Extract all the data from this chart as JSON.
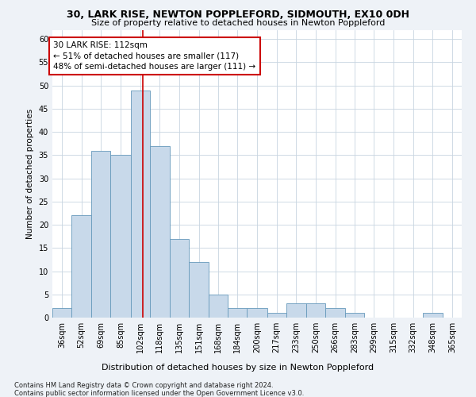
{
  "title": "30, LARK RISE, NEWTON POPPLEFORD, SIDMOUTH, EX10 0DH",
  "subtitle": "Size of property relative to detached houses in Newton Poppleford",
  "xlabel": "Distribution of detached houses by size in Newton Poppleford",
  "ylabel": "Number of detached properties",
  "bar_color": "#c8d9ea",
  "bar_edge_color": "#6699bb",
  "vline_x": 112,
  "vline_color": "#cc0000",
  "categories": [
    "36sqm",
    "52sqm",
    "69sqm",
    "85sqm",
    "102sqm",
    "118sqm",
    "135sqm",
    "151sqm",
    "168sqm",
    "184sqm",
    "200sqm",
    "217sqm",
    "233sqm",
    "250sqm",
    "266sqm",
    "283sqm",
    "299sqm",
    "315sqm",
    "332sqm",
    "348sqm",
    "365sqm"
  ],
  "bin_edges": [
    36,
    52,
    69,
    85,
    102,
    118,
    135,
    151,
    168,
    184,
    200,
    217,
    233,
    250,
    266,
    283,
    299,
    315,
    332,
    348,
    365,
    381
  ],
  "values": [
    2,
    22,
    36,
    35,
    49,
    37,
    17,
    12,
    5,
    2,
    2,
    1,
    3,
    3,
    2,
    1,
    0,
    0,
    0,
    1,
    0
  ],
  "ylim": [
    0,
    62
  ],
  "yticks": [
    0,
    5,
    10,
    15,
    20,
    25,
    30,
    35,
    40,
    45,
    50,
    55,
    60
  ],
  "annotation_line1": "30 LARK RISE: 112sqm",
  "annotation_line2": "← 51% of detached houses are smaller (117)",
  "annotation_line3": "48% of semi-detached houses are larger (111) →",
  "footnote1": "Contains HM Land Registry data © Crown copyright and database right 2024.",
  "footnote2": "Contains public sector information licensed under the Open Government Licence v3.0.",
  "background_color": "#eef2f7",
  "plot_background": "#ffffff",
  "grid_color": "#c8d4e0",
  "title_fontsize": 9,
  "subtitle_fontsize": 8,
  "xlabel_fontsize": 8,
  "ylabel_fontsize": 7.5,
  "tick_fontsize": 7,
  "footnote_fontsize": 6,
  "annot_fontsize": 7.5
}
